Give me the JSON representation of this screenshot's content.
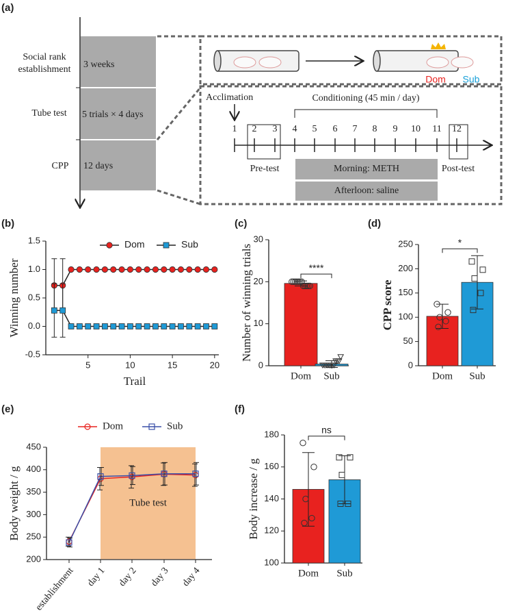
{
  "diagram": {
    "panel_label": "(a)",
    "stages": [
      {
        "name": [
          "Social rank",
          "establishment"
        ],
        "duration": "3 weeks"
      },
      {
        "name": [
          "Tube test"
        ],
        "duration": "5 trials × 4 days"
      },
      {
        "name": [
          "CPP"
        ],
        "duration": "12 days"
      }
    ],
    "ranks": [
      "Dom",
      "Sub"
    ],
    "acclimation": "Acclimation",
    "conditioning": "Conditioning (45 min / day)",
    "days": [
      1,
      2,
      3,
      4,
      5,
      6,
      7,
      8,
      9,
      10,
      11,
      12
    ],
    "pre_test": "Pre-test",
    "post_test": "Post-test",
    "morning": "Morning: METH",
    "afternoon": "Afterloon: saline"
  },
  "chart_data": [
    {
      "panel_label": "(b)",
      "type": "line",
      "x": [
        1,
        2,
        3,
        4,
        5,
        6,
        7,
        8,
        9,
        10,
        11,
        12,
        13,
        14,
        15,
        16,
        17,
        18,
        19,
        20
      ],
      "xlim": [
        0,
        20.5
      ],
      "xticks": [
        5,
        10,
        15,
        20
      ],
      "ylim": [
        -0.5,
        1.5
      ],
      "yticks": [
        -0.5,
        {
          "value": 0,
          "label": "0.0"
        },
        0.5,
        {
          "value": 1,
          "label": "1.0"
        },
        1.5
      ],
      "xlabel": "Trail",
      "ylabel": "Winning number",
      "legend": "top",
      "series": [
        {
          "name": "Dom",
          "color": "#e8221f",
          "marker": "circle",
          "values": [
            0.72,
            0.72,
            1,
            1,
            1,
            1,
            1,
            1,
            1,
            1,
            1,
            1,
            1,
            1,
            1,
            1,
            1,
            1,
            1,
            1
          ],
          "errors": [
            0.47,
            0.47,
            null,
            null,
            null,
            null,
            null,
            null,
            null,
            null,
            null,
            null,
            null,
            null,
            null,
            null,
            null,
            null,
            null,
            null
          ]
        },
        {
          "name": "Sub",
          "color": "#1f9ad6",
          "marker": "square",
          "values": [
            0.28,
            0.28,
            0,
            0,
            0,
            0,
            0,
            0,
            0,
            0,
            0,
            0,
            0,
            0,
            0,
            0,
            0,
            0,
            0,
            0
          ],
          "errors": [
            0.47,
            0.47,
            null,
            null,
            null,
            null,
            null,
            null,
            null,
            null,
            null,
            null,
            null,
            null,
            null,
            null,
            null,
            null,
            null,
            null
          ]
        }
      ]
    },
    {
      "panel_label": "(c)",
      "type": "bar",
      "categories": [
        "Dom",
        "Sub"
      ],
      "values": [
        19.6,
        0.4
      ],
      "errors": [
        0.6,
        0.8
      ],
      "colors": [
        "#e8221f",
        "#1f9ad6"
      ],
      "markers": [
        "circle",
        "triangle"
      ],
      "points": [
        [
          20,
          20,
          20,
          20,
          20,
          20,
          20,
          19,
          19,
          19,
          19,
          19
        ],
        [
          0,
          0,
          0,
          0,
          0,
          0,
          0,
          0,
          1,
          1,
          1,
          2
        ]
      ],
      "ylim": [
        0,
        30
      ],
      "yticks": [
        0,
        10,
        20,
        30
      ],
      "ylabel": "Number of winning trials",
      "annotation": "****"
    },
    {
      "panel_label": "(d)",
      "type": "bar",
      "categories": [
        "Dom",
        "Sub"
      ],
      "values": [
        102,
        172
      ],
      "errors": [
        25,
        55
      ],
      "colors": [
        "#e8221f",
        "#1f9ad6"
      ],
      "markers": [
        "circle",
        "square"
      ],
      "points": [
        [
          127,
          110,
          100,
          92,
          80
        ],
        [
          215,
          198,
          180,
          150,
          115
        ]
      ],
      "ylim": [
        0,
        250
      ],
      "yticks": [
        0,
        50,
        100,
        150,
        200,
        250
      ],
      "ylabel": "CPP score",
      "annotation": "*"
    },
    {
      "panel_label": "(e)",
      "type": "line",
      "categories": [
        "establishment",
        "day 1",
        "day 2",
        "day 3",
        "day 4"
      ],
      "ylim": [
        200,
        450
      ],
      "yticks": [
        200,
        250,
        300,
        350,
        400,
        450
      ],
      "ylabel": "Body weight / g",
      "legend": "top",
      "shade": {
        "label": "Tube test",
        "from": "day 1",
        "to": "day 4",
        "color": "#f5c191"
      },
      "series": [
        {
          "name": "Dom",
          "color": "#e8221f",
          "marker": "open-circle",
          "values": [
            240,
            380,
            384,
            390,
            388
          ],
          "errors": [
            10,
            25,
            25,
            25,
            25
          ]
        },
        {
          "name": "Sub",
          "color": "#3a4fa8",
          "marker": "open-square",
          "values": [
            238,
            385,
            387,
            391,
            391
          ],
          "errors": [
            10,
            20,
            20,
            25,
            25
          ]
        }
      ]
    },
    {
      "panel_label": "(f)",
      "type": "bar",
      "categories": [
        "Dom",
        "Sub"
      ],
      "values": [
        146,
        152
      ],
      "errors": [
        23,
        15
      ],
      "colors": [
        "#e8221f",
        "#1f9ad6"
      ],
      "markers": [
        "circle",
        "square"
      ],
      "points": [
        [
          175,
          160,
          140,
          128,
          125
        ],
        [
          166,
          166,
          155,
          137,
          137
        ]
      ],
      "ylim": [
        100,
        180
      ],
      "yticks": [
        100,
        120,
        140,
        160,
        180
      ],
      "ylabel": "Body increase / g",
      "annotation": "ns"
    }
  ]
}
